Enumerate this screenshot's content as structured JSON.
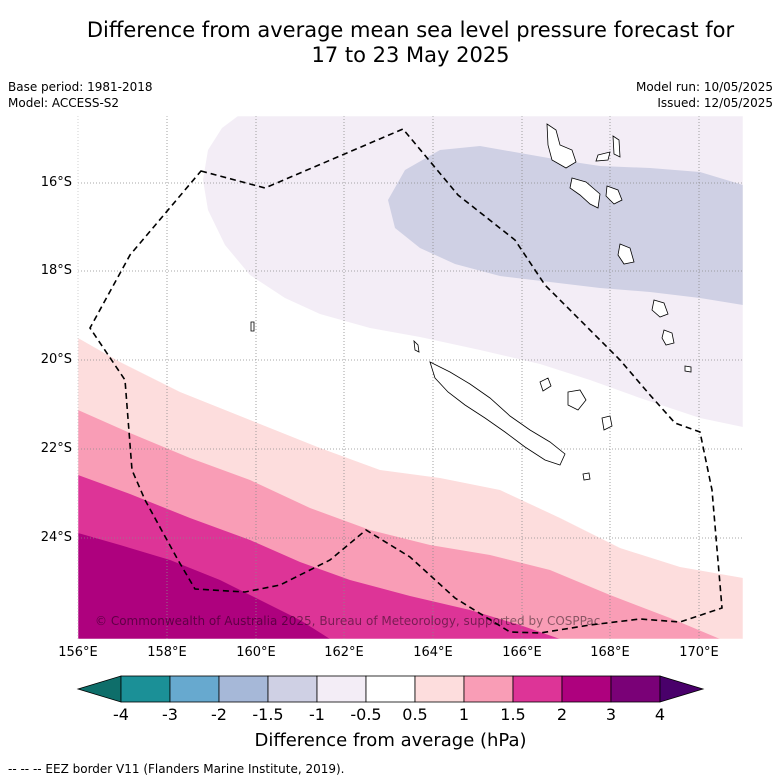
{
  "title_line1": "Difference from average mean sea level pressure forecast for",
  "title_line2": "17 to 23 May 2025",
  "meta_left": {
    "base_period": "Base period: 1981-2018",
    "model": "Model: ACCESS-S2"
  },
  "meta_right": {
    "model_run": "Model run: 10/05/2025",
    "issued": "Issued: 12/05/2025"
  },
  "map": {
    "lat_labels": [
      "16°S",
      "18°S",
      "20°S",
      "22°S",
      "24°S"
    ],
    "lon_labels": [
      "156°E",
      "158°E",
      "160°E",
      "162°E",
      "164°E",
      "166°E",
      "168°E",
      "170°E"
    ],
    "copyright": "© Commonwealth of Australia 2025, Bureau of Meteorology, supported by COSPPac",
    "anomaly_regions": [
      {
        "level": "-1.5 to -1",
        "color": "#cfd0e4"
      },
      {
        "level": "-1 to -0.5",
        "color": "#f3edf6"
      },
      {
        "level": "0.5 to 1",
        "color": "#fddddd"
      },
      {
        "level": "1 to 1.5",
        "color": "#f99db6"
      },
      {
        "level": "1.5 to 2",
        "color": "#dd3497"
      },
      {
        "level": "2 to 3",
        "color": "#ae017e"
      }
    ]
  },
  "colorbar": {
    "ticks": [
      "-4",
      "-3",
      "-2",
      "-1.5",
      "-1",
      "-0.5",
      "0.5",
      "1",
      "1.5",
      "2",
      "3",
      "4"
    ],
    "colors": [
      "#0e6e6a",
      "#1b9097",
      "#67a9cf",
      "#a6b8d8",
      "#cfd0e4",
      "#f3edf6",
      "#ffffff",
      "#fddddd",
      "#f99db6",
      "#dd3497",
      "#ae017e",
      "#7a0177",
      "#49006a"
    ],
    "label": "Difference from average (hPa)"
  },
  "footer": "--  --  -- EEZ border V11 (Flanders Marine Institute, 2019)."
}
